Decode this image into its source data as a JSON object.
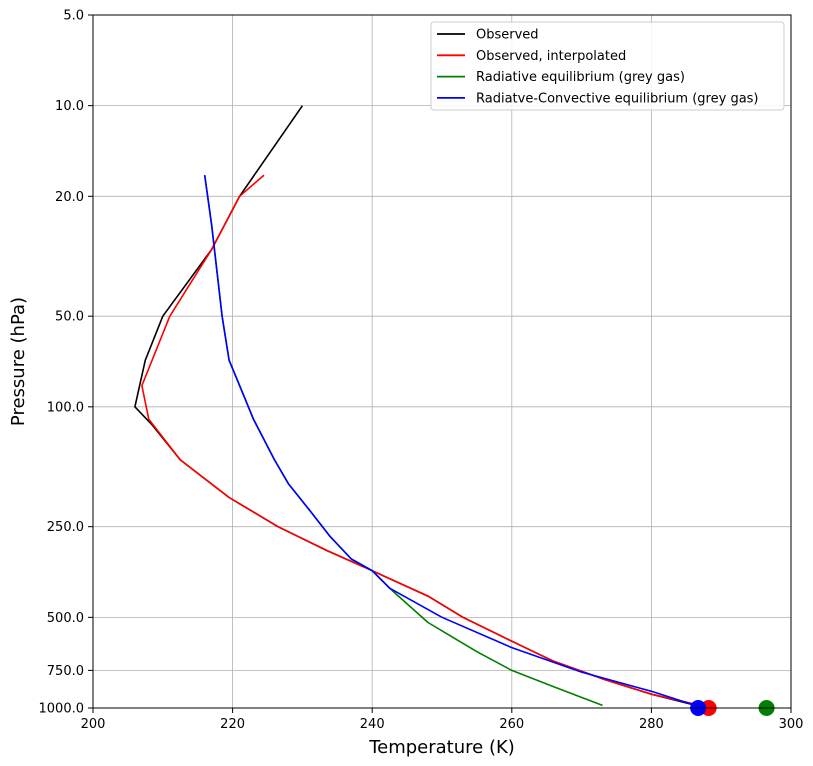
{
  "chart_data": {
    "type": "line",
    "xlabel": "Temperature (K)",
    "ylabel": "Pressure (hPa)",
    "xlim": [
      200,
      300
    ],
    "ylim": [
      1000,
      5
    ],
    "yscale": "log",
    "x_ticks": [
      200,
      220,
      240,
      260,
      280,
      300
    ],
    "x_tick_labels": [
      "200",
      "220",
      "240",
      "260",
      "280",
      "300"
    ],
    "y_ticks": [
      5,
      10,
      20,
      50,
      100,
      250,
      500,
      750,
      1000
    ],
    "y_tick_labels": [
      "5.0",
      "10.0",
      "20.0",
      "50.0",
      "100.0",
      "250.0",
      "500.0",
      "750.0",
      "1000.0"
    ],
    "grid": true,
    "legend_position": "top-right",
    "series": [
      {
        "name": "Observed",
        "color": "#000000",
        "points": [
          [
            230,
            10
          ],
          [
            221,
            20
          ],
          [
            217,
            30
          ],
          [
            210,
            50
          ],
          [
            207.5,
            70
          ],
          [
            206,
            100
          ],
          [
            208.5,
            115
          ],
          [
            212.5,
            150
          ],
          [
            219.5,
            200
          ],
          [
            226.5,
            250
          ],
          [
            233.5,
            300
          ],
          [
            240,
            350
          ],
          [
            248,
            425
          ],
          [
            253,
            500
          ],
          [
            260,
            600
          ],
          [
            266,
            700
          ],
          [
            273,
            800
          ],
          [
            280,
            900
          ],
          [
            286,
            975
          ]
        ]
      },
      {
        "name": "Observed, interpolated",
        "color": "#ff0000",
        "points": [
          [
            224.5,
            17
          ],
          [
            221,
            20
          ],
          [
            217,
            30
          ],
          [
            211,
            50
          ],
          [
            207,
            85
          ],
          [
            208,
            110
          ],
          [
            212.5,
            150
          ],
          [
            219.5,
            200
          ],
          [
            226.5,
            250
          ],
          [
            233.5,
            300
          ],
          [
            240,
            350
          ],
          [
            248,
            425
          ],
          [
            253,
            500
          ],
          [
            260,
            600
          ],
          [
            266,
            700
          ],
          [
            273,
            800
          ],
          [
            280,
            900
          ],
          [
            287,
            980
          ]
        ]
      },
      {
        "name": "Radiative equilibrium (grey gas)",
        "color": "#008000",
        "points": [
          [
            216,
            17
          ],
          [
            217,
            25
          ],
          [
            218.5,
            50
          ],
          [
            219.5,
            70
          ],
          [
            221,
            85
          ],
          [
            223,
            110
          ],
          [
            226,
            150
          ],
          [
            228,
            180
          ],
          [
            231,
            220
          ],
          [
            234,
            270
          ],
          [
            237,
            320
          ],
          [
            240,
            350
          ],
          [
            243,
            410
          ],
          [
            248,
            520
          ],
          [
            255,
            650
          ],
          [
            260,
            750
          ],
          [
            266,
            850
          ],
          [
            273,
            980
          ]
        ]
      },
      {
        "name": "Radiatve-Convective equilibrium (grey gas)",
        "color": "#0000ff",
        "points": [
          [
            216,
            17
          ],
          [
            217,
            25
          ],
          [
            218.5,
            50
          ],
          [
            219.5,
            70
          ],
          [
            221,
            85
          ],
          [
            223,
            110
          ],
          [
            226,
            150
          ],
          [
            228,
            180
          ],
          [
            231,
            220
          ],
          [
            234,
            270
          ],
          [
            237,
            320
          ],
          [
            240,
            350
          ],
          [
            242.5,
            400
          ],
          [
            250,
            500
          ],
          [
            260,
            630
          ],
          [
            270,
            760
          ],
          [
            280,
            880
          ],
          [
            286,
            975
          ]
        ]
      }
    ],
    "surface_markers": [
      {
        "x": 288.2,
        "y": 1000,
        "color": "#ff0000"
      },
      {
        "x": 296.5,
        "y": 1000,
        "color": "#008000"
      },
      {
        "x": 286.7,
        "y": 1000,
        "color": "#0000ff"
      }
    ]
  }
}
